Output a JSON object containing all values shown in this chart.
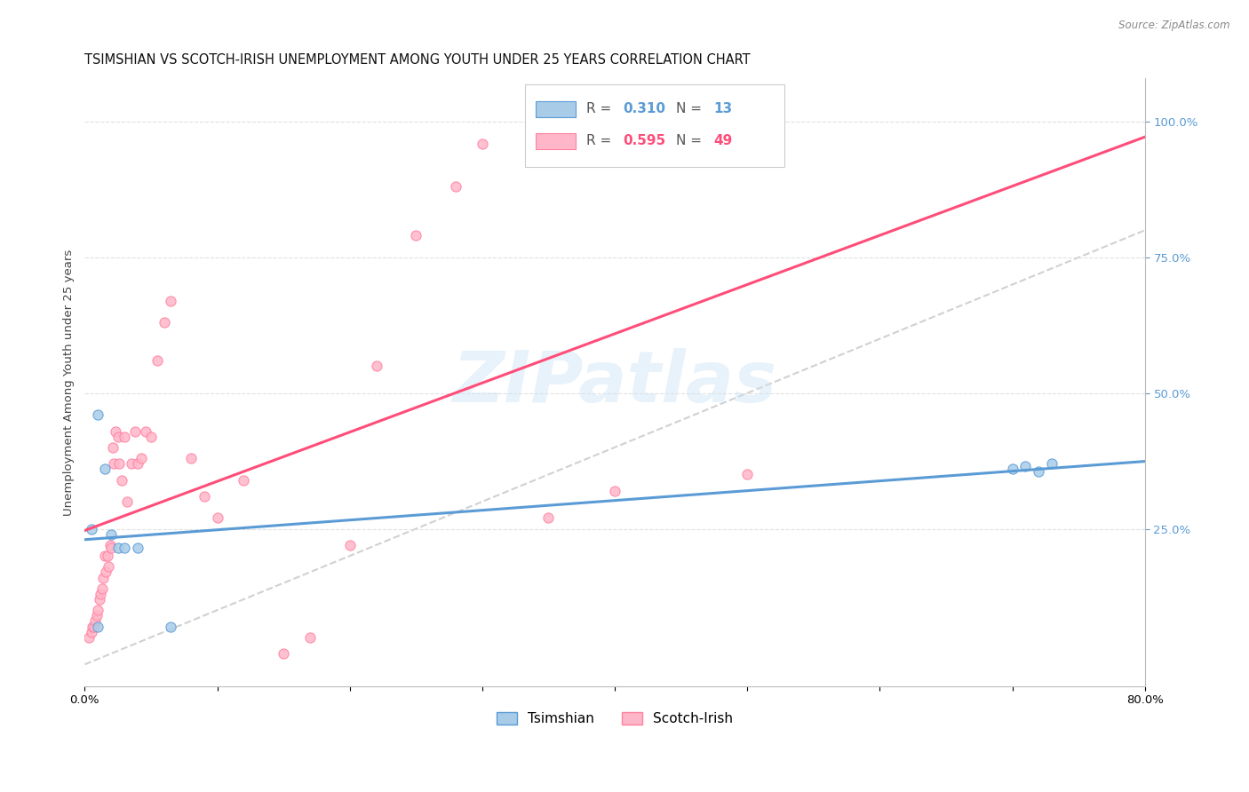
{
  "title": "TSIMSHIAN VS SCOTCH-IRISH UNEMPLOYMENT AMONG YOUTH UNDER 25 YEARS CORRELATION CHART",
  "source": "Source: ZipAtlas.com",
  "ylabel": "Unemployment Among Youth under 25 years",
  "xlim": [
    0.0,
    0.8
  ],
  "ylim": [
    -0.04,
    1.08
  ],
  "xticks": [
    0.0,
    0.1,
    0.2,
    0.3,
    0.4,
    0.5,
    0.6,
    0.7,
    0.8
  ],
  "xticklabels": [
    "0.0%",
    "",
    "",
    "",
    "",
    "",
    "",
    "",
    "80.0%"
  ],
  "yticks_right": [
    0.25,
    0.5,
    0.75,
    1.0
  ],
  "ytick_right_labels": [
    "25.0%",
    "50.0%",
    "75.0%",
    "100.0%"
  ],
  "watermark": "ZIPatlas",
  "tsimshian_color": "#a8cce8",
  "scotchirish_color": "#ffb6c8",
  "tsimshian_edge": "#5b9bd5",
  "scotchirish_edge": "#ff80a0",
  "tsimshian_line_color": "#5b9bd5",
  "scotchirish_line_color": "#ff4d79",
  "ref_line_color": "#cccccc",
  "tsimshian_R": 0.31,
  "tsimshian_N": 13,
  "scotchirish_R": 0.595,
  "scotchirish_N": 49,
  "tsimshian_x": [
    0.005,
    0.01,
    0.015,
    0.02,
    0.025,
    0.03,
    0.04,
    0.065,
    0.7,
    0.71,
    0.72,
    0.73,
    0.01
  ],
  "tsimshian_y": [
    0.25,
    0.46,
    0.36,
    0.24,
    0.215,
    0.215,
    0.215,
    0.07,
    0.36,
    0.365,
    0.355,
    0.37,
    0.07
  ],
  "scotchirish_x": [
    0.003,
    0.005,
    0.006,
    0.007,
    0.008,
    0.009,
    0.01,
    0.011,
    0.012,
    0.013,
    0.014,
    0.015,
    0.016,
    0.017,
    0.018,
    0.019,
    0.02,
    0.021,
    0.022,
    0.023,
    0.025,
    0.026,
    0.028,
    0.03,
    0.032,
    0.035,
    0.038,
    0.04,
    0.043,
    0.046,
    0.05,
    0.055,
    0.06,
    0.065,
    0.08,
    0.09,
    0.1,
    0.12,
    0.15,
    0.17,
    0.2,
    0.22,
    0.25,
    0.28,
    0.3,
    0.35,
    0.4,
    0.5,
    0.52
  ],
  "scotchirish_y": [
    0.05,
    0.06,
    0.07,
    0.07,
    0.08,
    0.09,
    0.1,
    0.12,
    0.13,
    0.14,
    0.16,
    0.2,
    0.17,
    0.2,
    0.18,
    0.22,
    0.215,
    0.4,
    0.37,
    0.43,
    0.42,
    0.37,
    0.34,
    0.42,
    0.3,
    0.37,
    0.43,
    0.37,
    0.38,
    0.43,
    0.42,
    0.56,
    0.63,
    0.67,
    0.38,
    0.31,
    0.27,
    0.34,
    0.02,
    0.05,
    0.22,
    0.55,
    0.79,
    0.88,
    0.96,
    0.27,
    0.32,
    0.35,
    0.96
  ],
  "marker_size": 65,
  "title_fontsize": 10.5,
  "axis_label_fontsize": 9.5,
  "tick_fontsize": 9.5,
  "legend_fontsize": 11,
  "legend_color_text": "#5b9bd5",
  "legend_pink_text": "#ff4d79"
}
